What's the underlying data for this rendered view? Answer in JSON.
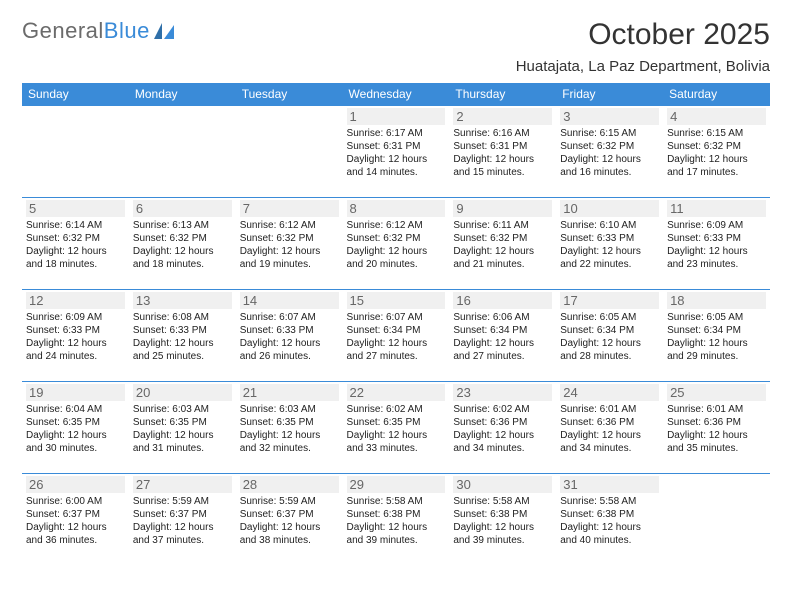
{
  "brand": {
    "part1": "General",
    "part2": "Blue"
  },
  "title": "October 2025",
  "location": "Huatajata, La Paz Department, Bolivia",
  "colors": {
    "accent": "#3a8bd8",
    "text": "#333333",
    "daybg": "#f0f0f0"
  },
  "dayHeaders": [
    "Sunday",
    "Monday",
    "Tuesday",
    "Wednesday",
    "Thursday",
    "Friday",
    "Saturday"
  ],
  "weeks": [
    [
      null,
      null,
      null,
      {
        "n": "1",
        "sr": "6:17 AM",
        "ss": "6:31 PM",
        "dl": "12 hours and 14 minutes."
      },
      {
        "n": "2",
        "sr": "6:16 AM",
        "ss": "6:31 PM",
        "dl": "12 hours and 15 minutes."
      },
      {
        "n": "3",
        "sr": "6:15 AM",
        "ss": "6:32 PM",
        "dl": "12 hours and 16 minutes."
      },
      {
        "n": "4",
        "sr": "6:15 AM",
        "ss": "6:32 PM",
        "dl": "12 hours and 17 minutes."
      }
    ],
    [
      {
        "n": "5",
        "sr": "6:14 AM",
        "ss": "6:32 PM",
        "dl": "12 hours and 18 minutes."
      },
      {
        "n": "6",
        "sr": "6:13 AM",
        "ss": "6:32 PM",
        "dl": "12 hours and 18 minutes."
      },
      {
        "n": "7",
        "sr": "6:12 AM",
        "ss": "6:32 PM",
        "dl": "12 hours and 19 minutes."
      },
      {
        "n": "8",
        "sr": "6:12 AM",
        "ss": "6:32 PM",
        "dl": "12 hours and 20 minutes."
      },
      {
        "n": "9",
        "sr": "6:11 AM",
        "ss": "6:32 PM",
        "dl": "12 hours and 21 minutes."
      },
      {
        "n": "10",
        "sr": "6:10 AM",
        "ss": "6:33 PM",
        "dl": "12 hours and 22 minutes."
      },
      {
        "n": "11",
        "sr": "6:09 AM",
        "ss": "6:33 PM",
        "dl": "12 hours and 23 minutes."
      }
    ],
    [
      {
        "n": "12",
        "sr": "6:09 AM",
        "ss": "6:33 PM",
        "dl": "12 hours and 24 minutes."
      },
      {
        "n": "13",
        "sr": "6:08 AM",
        "ss": "6:33 PM",
        "dl": "12 hours and 25 minutes."
      },
      {
        "n": "14",
        "sr": "6:07 AM",
        "ss": "6:33 PM",
        "dl": "12 hours and 26 minutes."
      },
      {
        "n": "15",
        "sr": "6:07 AM",
        "ss": "6:34 PM",
        "dl": "12 hours and 27 minutes."
      },
      {
        "n": "16",
        "sr": "6:06 AM",
        "ss": "6:34 PM",
        "dl": "12 hours and 27 minutes."
      },
      {
        "n": "17",
        "sr": "6:05 AM",
        "ss": "6:34 PM",
        "dl": "12 hours and 28 minutes."
      },
      {
        "n": "18",
        "sr": "6:05 AM",
        "ss": "6:34 PM",
        "dl": "12 hours and 29 minutes."
      }
    ],
    [
      {
        "n": "19",
        "sr": "6:04 AM",
        "ss": "6:35 PM",
        "dl": "12 hours and 30 minutes."
      },
      {
        "n": "20",
        "sr": "6:03 AM",
        "ss": "6:35 PM",
        "dl": "12 hours and 31 minutes."
      },
      {
        "n": "21",
        "sr": "6:03 AM",
        "ss": "6:35 PM",
        "dl": "12 hours and 32 minutes."
      },
      {
        "n": "22",
        "sr": "6:02 AM",
        "ss": "6:35 PM",
        "dl": "12 hours and 33 minutes."
      },
      {
        "n": "23",
        "sr": "6:02 AM",
        "ss": "6:36 PM",
        "dl": "12 hours and 34 minutes."
      },
      {
        "n": "24",
        "sr": "6:01 AM",
        "ss": "6:36 PM",
        "dl": "12 hours and 34 minutes."
      },
      {
        "n": "25",
        "sr": "6:01 AM",
        "ss": "6:36 PM",
        "dl": "12 hours and 35 minutes."
      }
    ],
    [
      {
        "n": "26",
        "sr": "6:00 AM",
        "ss": "6:37 PM",
        "dl": "12 hours and 36 minutes."
      },
      {
        "n": "27",
        "sr": "5:59 AM",
        "ss": "6:37 PM",
        "dl": "12 hours and 37 minutes."
      },
      {
        "n": "28",
        "sr": "5:59 AM",
        "ss": "6:37 PM",
        "dl": "12 hours and 38 minutes."
      },
      {
        "n": "29",
        "sr": "5:58 AM",
        "ss": "6:38 PM",
        "dl": "12 hours and 39 minutes."
      },
      {
        "n": "30",
        "sr": "5:58 AM",
        "ss": "6:38 PM",
        "dl": "12 hours and 39 minutes."
      },
      {
        "n": "31",
        "sr": "5:58 AM",
        "ss": "6:38 PM",
        "dl": "12 hours and 40 minutes."
      },
      null
    ]
  ],
  "labels": {
    "sunrise": "Sunrise:",
    "sunset": "Sunset:",
    "daylight": "Daylight:"
  }
}
